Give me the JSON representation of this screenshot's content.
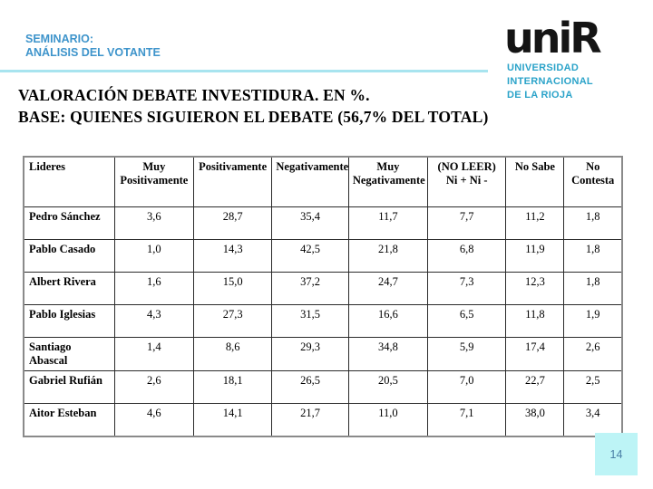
{
  "header": {
    "line1": "SEMINARIO:",
    "line2": "ANÁLISIS DEL VOTANTE",
    "text_color": "#3E94CB"
  },
  "logo": {
    "wordmark": "uniR",
    "wordmark_color": "#141414",
    "subtitle_lines": [
      "UNIVERSIDAD",
      "INTERNACIONAL",
      "DE LA RIOJA"
    ],
    "subtitle_color": "#2BA3C9"
  },
  "title": {
    "line1": "VALORACIÓN DEBATE INVESTIDURA. EN %.",
    "line2": "BASE: QUIENES SIGUIERON EL DEBATE (56,7% DEL TOTAL)"
  },
  "table": {
    "header": [
      [
        "Lideres"
      ],
      [
        "Muy",
        "Positivamente"
      ],
      [
        "Positivamente"
      ],
      [
        "Negativamente"
      ],
      [
        "Muy",
        "Negativamente"
      ],
      [
        "(NO LEER)",
        "Ni + Ni -"
      ],
      [
        "No Sabe"
      ],
      [
        "No",
        "Contesta"
      ]
    ],
    "rows": [
      {
        "leader": "Pedro Sánchez",
        "values": [
          "3,6",
          "28,7",
          "35,4",
          "11,7",
          "7,7",
          "11,2",
          "1,8"
        ]
      },
      {
        "leader": "Pablo Casado",
        "values": [
          "1,0",
          "14,3",
          "42,5",
          "21,8",
          "6,8",
          "11,9",
          "1,8"
        ]
      },
      {
        "leader": "Albert Rivera",
        "values": [
          "1,6",
          "15,0",
          "37,2",
          "24,7",
          "7,3",
          "12,3",
          "1,8"
        ]
      },
      {
        "leader": "Pablo Iglesias",
        "values": [
          "4,3",
          "27,3",
          "31,5",
          "16,6",
          "6,5",
          "11,8",
          "1,9"
        ]
      },
      {
        "leader": "Santiago Abascal",
        "values": [
          "1,4",
          "8,6",
          "29,3",
          "34,8",
          "5,9",
          "17,4",
          "2,6"
        ]
      },
      {
        "leader": "Gabriel Rufián",
        "values": [
          "2,6",
          "18,1",
          "26,5",
          "20,5",
          "7,0",
          "22,7",
          "2,5"
        ]
      },
      {
        "leader": "Aitor Esteban",
        "values": [
          "4,6",
          "14,1",
          "21,7",
          "11,0",
          "7,1",
          "38,0",
          "3,4"
        ]
      }
    ]
  },
  "footer": {
    "page_number": "14",
    "box_color": "#BDF4F6",
    "number_color": "#4A7FA6"
  },
  "accents": {
    "divider_color": "#A8E4EF"
  }
}
